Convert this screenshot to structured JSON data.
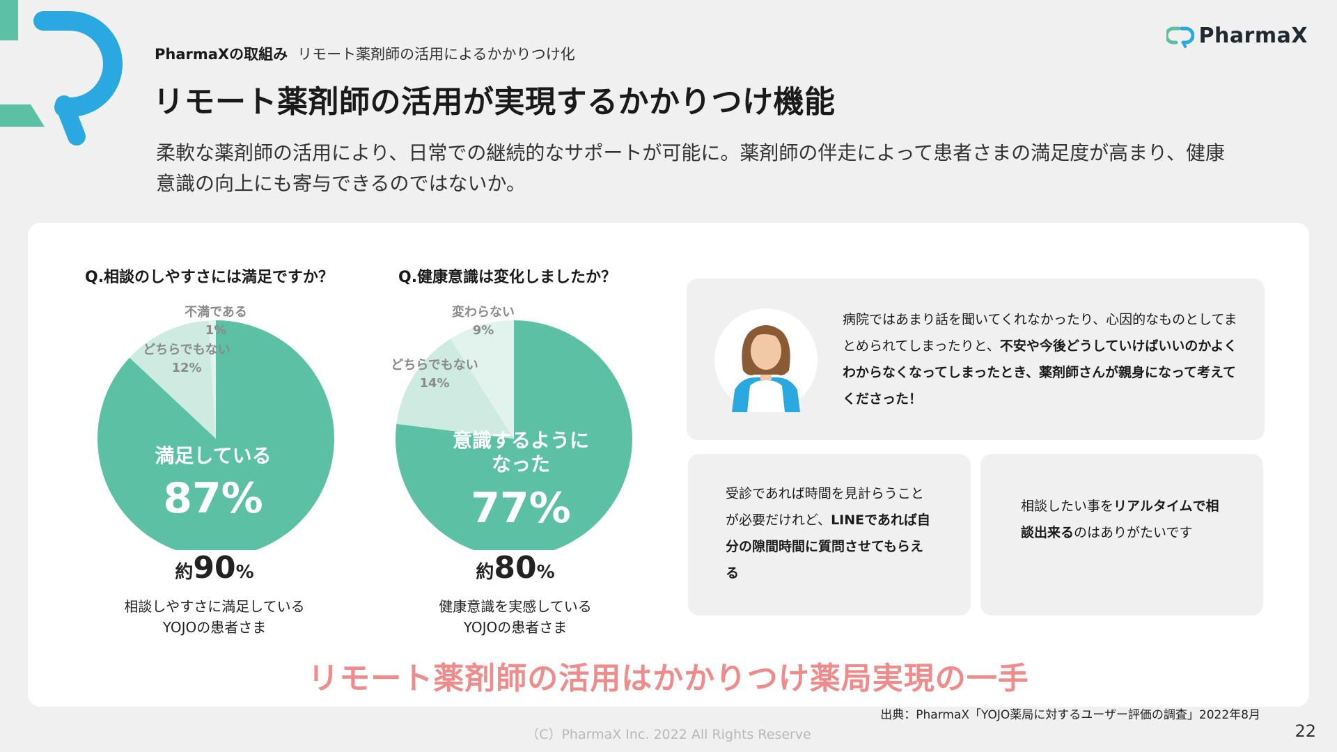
{
  "header": {
    "brand_name": "PharmaX",
    "section_strong": "PharmaXの取組み",
    "section_sub": "リモート薬剤師の活用によるかかりつけ化",
    "title": "リモート薬剤師の活用が実現するかかりつけ機能",
    "lead": "柔軟な薬剤師の活用により、日常での継続的なサポートが可能に。薬剤師の伴走によって患者さまの満足度が高まり、健康意識の向上にも寄与できるのではないか。"
  },
  "colors": {
    "accent_green": "#5cc1a4",
    "light_green": "#cdebe0",
    "lighter_green": "#e1f3ec",
    "logo_blue": "#2aa8e0",
    "conclusion_pink": "#ee8c8c"
  },
  "survey1": {
    "question": "Q.相談のしやすさには満足ですか？",
    "main_label": "満足している",
    "main_pct": "87%",
    "labels": [
      {
        "name": "不満である",
        "pct": "1%"
      },
      {
        "name": "どちらでもない",
        "pct": "12%"
      }
    ],
    "stat_prefix": "約",
    "stat_value": "90",
    "stat_unit": "%",
    "desc_line1": "相談しやすさに満足している",
    "desc_line2": "YOJOの患者さま"
  },
  "survey2": {
    "question": "Q.健康意識は変化しましたか？",
    "main_label_line1": "意識するように",
    "main_label_line2": "なった",
    "main_pct": "77%",
    "labels": [
      {
        "name": "変わらない",
        "pct": "9%"
      },
      {
        "name": "どちらでもない",
        "pct": "14%"
      }
    ],
    "stat_prefix": "約",
    "stat_value": "80",
    "stat_unit": "%",
    "desc_line1": "健康意識を実感している",
    "desc_line2": "YOJOの患者さま"
  },
  "chart_data": [
    {
      "type": "pie",
      "title": "Q.相談のしやすさには満足ですか？",
      "categories": [
        "満足している",
        "どちらでもない",
        "不満である"
      ],
      "values": [
        87,
        12,
        1
      ]
    },
    {
      "type": "pie",
      "title": "Q.健康意識は変化しましたか？",
      "categories": [
        "意識するようになった",
        "どちらでもない",
        "変わらない"
      ],
      "values": [
        77,
        14,
        9
      ]
    }
  ],
  "quotes": {
    "q1_p1": "病院ではあまり話を聞いてくれなかったり、心因的なものとしてまとめられてしまったりと、",
    "q1_b1": "不安や今後どうしていけばいいのかよくわからなくなってしまったとき、薬剤師さんが親身になって考えてくださった！",
    "q2_p1": "受診であれば時間を見計らうことが必要だけれど、",
    "q2_b1": "LINEであれば自分の隙間時間に質問させてもらえる",
    "q3_p1": "相談したい事を",
    "q3_b1": "リアルタイムで相談出来る",
    "q3_p2": "のはありがたいです"
  },
  "conclusion": "リモート薬剤師の活用はかかりつけ薬局実現の一手",
  "source": "出典：PharmaX「YOJO薬局に対するユーザー評価の調査」2022年8月",
  "copyright": "（C）PharmaX Inc. 2022  All Rights Reserve",
  "page_number": "22"
}
